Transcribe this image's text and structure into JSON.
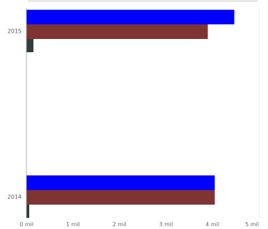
{
  "chart_data": {
    "type": "bar",
    "orientation": "horizontal",
    "title": "",
    "categories": [
      "2015",
      "2014"
    ],
    "series": [
      {
        "name": "",
        "color": "#0000ff",
        "values": [
          4.47,
          4.05
        ]
      },
      {
        "name": "",
        "color": "#7f3333",
        "values": [
          3.9,
          4.05
        ]
      },
      {
        "name": "",
        "color": "#2f3c40",
        "values": [
          0.15,
          0.06
        ]
      }
    ],
    "xlim": [
      0,
      5
    ],
    "x_ticks": [
      {
        "value": 0,
        "label": "0 mil"
      },
      {
        "value": 1,
        "label": "1 mil"
      },
      {
        "value": 2,
        "label": "2 mil"
      },
      {
        "value": 3,
        "label": "3 mil"
      },
      {
        "value": 4,
        "label": "4 mil"
      },
      {
        "value": 5,
        "label": "5 mil"
      }
    ],
    "xlabel": "",
    "ylabel": "",
    "grid": false,
    "legend": "none"
  }
}
